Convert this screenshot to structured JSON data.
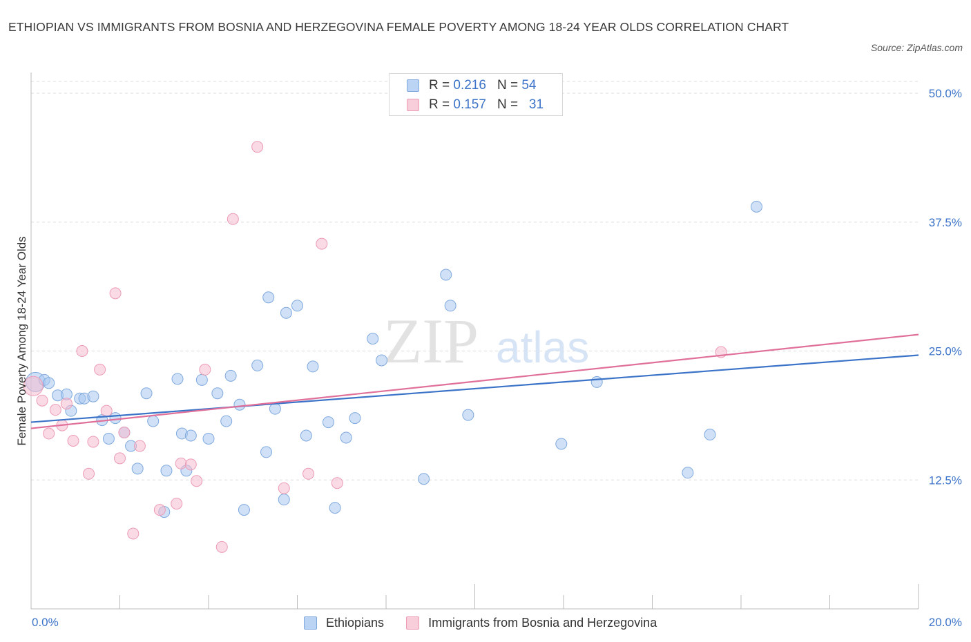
{
  "title": "ETHIOPIAN VS IMMIGRANTS FROM BOSNIA AND HERZEGOVINA FEMALE POVERTY AMONG 18-24 YEAR OLDS CORRELATION CHART",
  "source": "Source: ZipAtlas.com",
  "watermark": {
    "zip": "ZIP",
    "atlas": "atlas"
  },
  "legend": {
    "series1": {
      "r_label": "R =",
      "r_value": "0.216",
      "n_label": "N =",
      "n_value": "54"
    },
    "series2": {
      "r_label": "R =",
      "r_value": "0.157",
      "n_label": "N =",
      "n_value": "31"
    }
  },
  "colors": {
    "blue_fill": "#aac8f0",
    "blue_stroke": "#7fa9de",
    "blue_line": "#3b73c8",
    "pink_fill": "#f6bccd",
    "pink_stroke": "#ec9bb5",
    "pink_line": "#e0709a",
    "tick_label": "#3b73c8",
    "grid": "#dcdcdc"
  },
  "chart_data": {
    "type": "scatter",
    "title": "ETHIOPIAN VS IMMIGRANTS FROM BOSNIA AND HERZEGOVINA FEMALE POVERTY AMONG 18-24 YEAR OLDS CORRELATION CHART",
    "xlabel": "",
    "ylabel": "Female Poverty Among 18-24 Year Olds",
    "xlim": [
      0,
      20
    ],
    "ylim": [
      0,
      50
    ],
    "x_tick_labels": [
      "0.0%",
      "20.0%"
    ],
    "y_ticks": [
      12.5,
      25.0,
      37.5,
      50.0
    ],
    "y_tick_labels": [
      "12.5%",
      "25.0%",
      "37.5%",
      "50.0%"
    ],
    "grid": "horizontal dashed",
    "legend_position": "top-center and bottom",
    "series": [
      {
        "name": "Ethiopians",
        "color": "#aac8f0",
        "trend": {
          "x": [
            0,
            20
          ],
          "y": [
            18.1,
            24.6
          ]
        },
        "points": [
          [
            0.1,
            22.0
          ],
          [
            0.3,
            22.2
          ],
          [
            0.4,
            21.9
          ],
          [
            0.6,
            20.7
          ],
          [
            0.8,
            20.8
          ],
          [
            0.9,
            19.2
          ],
          [
            1.1,
            20.4
          ],
          [
            1.2,
            20.4
          ],
          [
            1.4,
            20.6
          ],
          [
            1.6,
            18.3
          ],
          [
            1.75,
            16.5
          ],
          [
            1.9,
            18.5
          ],
          [
            2.1,
            17.1
          ],
          [
            2.25,
            15.8
          ],
          [
            2.4,
            13.6
          ],
          [
            2.6,
            20.9
          ],
          [
            2.75,
            18.2
          ],
          [
            3.0,
            9.4
          ],
          [
            3.05,
            13.4
          ],
          [
            3.3,
            22.3
          ],
          [
            3.4,
            17.0
          ],
          [
            3.5,
            13.4
          ],
          [
            3.6,
            16.8
          ],
          [
            3.85,
            22.2
          ],
          [
            4.0,
            16.5
          ],
          [
            4.2,
            20.9
          ],
          [
            4.4,
            18.2
          ],
          [
            4.5,
            22.6
          ],
          [
            4.7,
            19.8
          ],
          [
            4.8,
            9.6
          ],
          [
            5.1,
            23.6
          ],
          [
            5.3,
            15.2
          ],
          [
            5.35,
            30.2
          ],
          [
            5.5,
            19.4
          ],
          [
            5.7,
            10.6
          ],
          [
            5.75,
            28.7
          ],
          [
            6.0,
            29.4
          ],
          [
            6.2,
            16.8
          ],
          [
            6.35,
            23.5
          ],
          [
            6.7,
            18.1
          ],
          [
            6.85,
            9.8
          ],
          [
            7.1,
            16.6
          ],
          [
            7.3,
            18.5
          ],
          [
            7.7,
            26.2
          ],
          [
            7.9,
            24.1
          ],
          [
            8.85,
            12.6
          ],
          [
            9.35,
            32.4
          ],
          [
            9.45,
            29.4
          ],
          [
            9.85,
            18.8
          ],
          [
            11.95,
            16.0
          ],
          [
            12.75,
            22.0
          ],
          [
            14.8,
            13.2
          ],
          [
            15.3,
            16.9
          ],
          [
            16.35,
            39.0
          ]
        ]
      },
      {
        "name": "Immigrants from Bosnia and Herzegovina",
        "color": "#f6bccd",
        "trend": {
          "x": [
            0,
            20
          ],
          "y": [
            17.5,
            26.6
          ]
        },
        "points": [
          [
            0.05,
            21.6
          ],
          [
            0.25,
            20.2
          ],
          [
            0.4,
            17.0
          ],
          [
            0.55,
            19.3
          ],
          [
            0.7,
            17.8
          ],
          [
            0.8,
            19.9
          ],
          [
            0.95,
            16.3
          ],
          [
            1.15,
            25.0
          ],
          [
            1.3,
            13.1
          ],
          [
            1.4,
            16.2
          ],
          [
            1.55,
            23.2
          ],
          [
            1.7,
            19.2
          ],
          [
            1.9,
            30.6
          ],
          [
            2.0,
            14.6
          ],
          [
            2.1,
            17.1
          ],
          [
            2.3,
            7.3
          ],
          [
            2.45,
            15.8
          ],
          [
            2.9,
            9.6
          ],
          [
            3.28,
            10.2
          ],
          [
            3.38,
            14.1
          ],
          [
            3.6,
            14.0
          ],
          [
            3.73,
            12.4
          ],
          [
            3.92,
            23.2
          ],
          [
            4.3,
            6.0
          ],
          [
            4.55,
            37.8
          ],
          [
            5.1,
            44.8
          ],
          [
            5.7,
            11.7
          ],
          [
            6.25,
            13.1
          ],
          [
            6.55,
            35.4
          ],
          [
            6.9,
            12.2
          ],
          [
            15.55,
            24.9
          ]
        ]
      }
    ]
  }
}
